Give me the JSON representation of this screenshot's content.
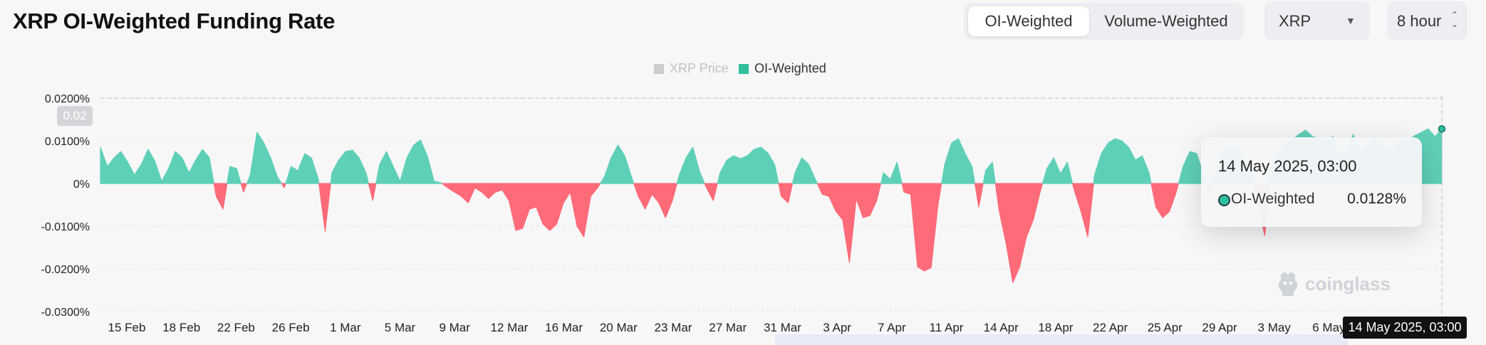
{
  "title": "XRP OI-Weighted Funding Rate",
  "weighting": {
    "options": [
      "OI-Weighted",
      "Volume-Weighted"
    ],
    "active": 0
  },
  "symbol_select": {
    "value": "XRP",
    "icon": "chevron-down-icon"
  },
  "interval_select": {
    "value": "8 hour",
    "icon": "updown-chevron-icon"
  },
  "legend": [
    {
      "name": "XRP Price",
      "color": "#cccccc",
      "active": false
    },
    {
      "name": "OI-Weighted",
      "color": "#2fbf9f",
      "active": true
    }
  ],
  "y_axis": {
    "ticks": [
      "0.0200%",
      "0.0100%",
      "0%",
      "-0.0100%",
      "-0.0200%",
      "-0.0300%"
    ],
    "crosshair_label": "0.02"
  },
  "x_axis": {
    "ticks": [
      "15 Feb",
      "18 Feb",
      "22 Feb",
      "26 Feb",
      "1 Mar",
      "5 Mar",
      "9 Mar",
      "12 Mar",
      "16 Mar",
      "20 Mar",
      "23 Mar",
      "27 Mar",
      "31 Mar",
      "3 Apr",
      "7 Apr",
      "11 Apr",
      "14 Apr",
      "18 Apr",
      "22 Apr",
      "25 Apr",
      "29 Apr",
      "3 May",
      "6 May"
    ],
    "crosshair_label": "14 May 2025, 03:00"
  },
  "tooltip": {
    "date": "14 May 2025, 03:00",
    "series": "OI-Weighted",
    "value": "0.0128%"
  },
  "watermark": "coinglass",
  "colors": {
    "positive": "#5fd0b8",
    "negative": "#ff6b78",
    "grid": "#e4e6e9"
  },
  "chart_data": {
    "type": "area",
    "title": "XRP OI-Weighted Funding Rate",
    "xlabel": "",
    "ylabel": "",
    "y_unit": "%",
    "ylim": [
      -0.03,
      0.02
    ],
    "series": [
      {
        "name": "OI-Weighted",
        "x_range": [
          "2025-02-13",
          "2025-05-14 03:00"
        ],
        "values": [
          0.0085,
          0.004,
          0.006,
          0.0075,
          0.005,
          0.002,
          0.0045,
          0.008,
          0.0052,
          0.0005,
          0.0035,
          0.0075,
          0.006,
          0.0025,
          0.0055,
          0.008,
          0.006,
          -0.003,
          -0.006,
          0.004,
          0.0035,
          -0.002,
          0.002,
          0.012,
          0.0095,
          0.006,
          0.0015,
          -0.001,
          0.004,
          0.003,
          0.007,
          0.006,
          0.001,
          -0.0112,
          0.0025,
          0.0055,
          0.0075,
          0.0078,
          0.006,
          0.0025,
          -0.004,
          0.0045,
          0.0075,
          0.004,
          0.0005,
          0.006,
          0.009,
          0.0102,
          0.0065,
          0.0005,
          0.0002,
          -0.001,
          -0.002,
          -0.003,
          -0.0045,
          -0.001,
          -0.002,
          -0.0035,
          -0.002,
          -0.0015,
          -0.004,
          -0.011,
          -0.0105,
          -0.006,
          -0.0055,
          -0.0095,
          -0.011,
          -0.0095,
          -0.0045,
          -0.002,
          -0.01,
          -0.0125,
          -0.003,
          -0.001,
          0.0015,
          0.006,
          0.009,
          0.0065,
          0.0015,
          -0.003,
          -0.006,
          -0.0025,
          -0.0045,
          -0.008,
          -0.004,
          0.002,
          0.006,
          0.0085,
          0.0028,
          -0.001,
          -0.004,
          0.0025,
          0.0055,
          0.0065,
          0.0058,
          0.0065,
          0.008,
          0.0085,
          0.0072,
          0.0045,
          -0.003,
          -0.0045,
          0.0025,
          0.006,
          0.0045,
          0.001,
          -0.0025,
          -0.003,
          -0.0065,
          -0.0085,
          -0.0185,
          -0.0035,
          -0.008,
          -0.0075,
          -0.004,
          0.0025,
          0.001,
          0.005,
          -0.002,
          -0.0025,
          -0.0195,
          -0.0205,
          -0.0197,
          -0.005,
          0.0045,
          0.0095,
          0.0105,
          0.007,
          0.004,
          -0.0055,
          0.003,
          0.005,
          -0.0065,
          -0.014,
          -0.0232,
          -0.0195,
          -0.0125,
          -0.0085,
          -0.002,
          0.0035,
          0.006,
          0.0023,
          0.005,
          -0.0015,
          -0.0065,
          -0.0125,
          0.002,
          0.007,
          0.0095,
          0.0105,
          0.01,
          0.0085,
          0.0055,
          0.0065,
          0.0025,
          -0.0055,
          -0.008,
          -0.0065,
          -0.002,
          0.004,
          0.0075,
          0.007,
          0.002,
          -0.0022,
          0.004,
          0.0078,
          0.009,
          0.0085,
          0.005,
          0.004,
          -0.0055,
          -0.0122,
          0.0045,
          0.0072,
          0.0092,
          0.0102,
          0.0115,
          0.0125,
          0.011,
          0.0105,
          0.0095,
          0.011,
          0.0065,
          0.008,
          0.0115,
          0.007,
          0.0085,
          0.0105,
          0.0095,
          0.0085,
          0.008,
          0.0105,
          0.01,
          0.0112,
          0.012,
          0.0128,
          0.011,
          0.0128
        ]
      }
    ]
  }
}
